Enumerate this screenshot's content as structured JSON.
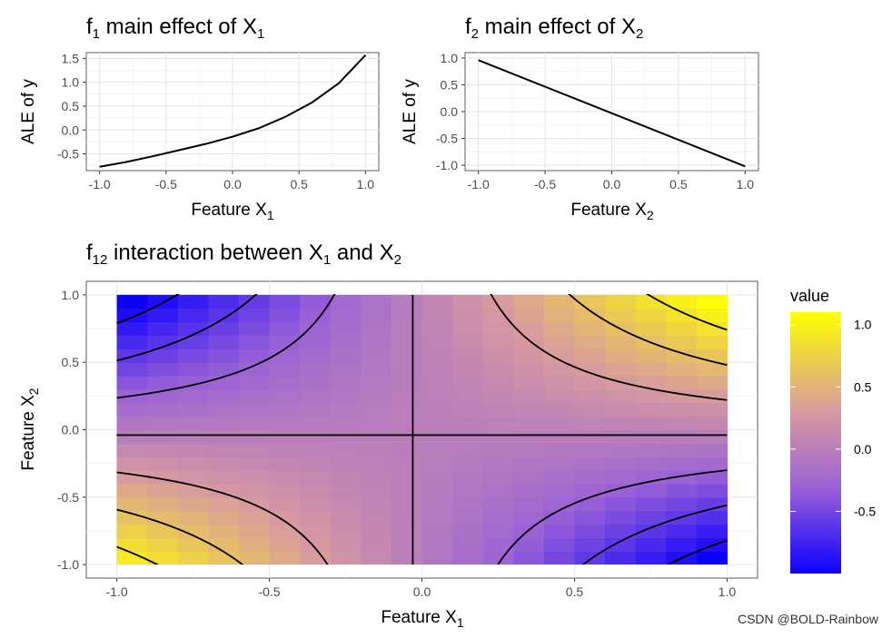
{
  "watermark": "CSDN @BOLD-Rainbow",
  "chart_data": [
    {
      "id": "f1",
      "type": "line",
      "title": {
        "main": "f",
        "sub": "1",
        "rest": " main effect of X",
        "sub2": "1"
      },
      "xlabel": {
        "main": "Feature X",
        "sub": "1"
      },
      "ylabel": "ALE of y",
      "xlim": [
        -1.1,
        1.1
      ],
      "ylim": [
        -0.85,
        1.62
      ],
      "xticks": [
        -1.0,
        -0.5,
        0.0,
        0.5,
        1.0
      ],
      "xtick_labels": [
        "-1.0",
        "-0.5",
        "0.0",
        "0.5",
        "1.0"
      ],
      "yticks": [
        -0.5,
        0.0,
        0.5,
        1.0,
        1.5
      ],
      "ytick_labels": [
        "-0.5",
        "0.0",
        "0.5",
        "1.0",
        "1.5"
      ],
      "grid": true,
      "x": [
        -1.0,
        -0.8,
        -0.6,
        -0.4,
        -0.2,
        0.0,
        0.2,
        0.4,
        0.6,
        0.8,
        1.0
      ],
      "y": [
        -0.77,
        -0.67,
        -0.55,
        -0.42,
        -0.29,
        -0.14,
        0.04,
        0.28,
        0.58,
        0.98,
        1.57
      ]
    },
    {
      "id": "f2",
      "type": "line",
      "title": {
        "main": "f",
        "sub": "2",
        "rest": " main effect of X",
        "sub2": "2"
      },
      "xlabel": {
        "main": "Feature X",
        "sub": "2"
      },
      "ylabel": "ALE of y",
      "xlim": [
        -1.1,
        1.1
      ],
      "ylim": [
        -1.1,
        1.1
      ],
      "xticks": [
        -1.0,
        -0.5,
        0.0,
        0.5,
        1.0
      ],
      "xtick_labels": [
        "-1.0",
        "-0.5",
        "0.0",
        "0.5",
        "1.0"
      ],
      "yticks": [
        -1.0,
        -0.5,
        0.0,
        0.5,
        1.0
      ],
      "ytick_labels": [
        "-1.0",
        "-0.5",
        "0.0",
        "0.5",
        "1.0"
      ],
      "grid": true,
      "x": [
        -1.0,
        1.0
      ],
      "y": [
        0.96,
        -1.02
      ]
    },
    {
      "id": "f12",
      "type": "heatmap",
      "title": {
        "main": "f",
        "sub": "12",
        "rest": " interaction between X",
        "sub2": "1",
        "rest2": " and X",
        "sub3": "2"
      },
      "xlabel": {
        "main": "Feature X",
        "sub": "1"
      },
      "ylabel": {
        "main": "Feature X",
        "sub": "2"
      },
      "xlim": [
        -1.1,
        1.1
      ],
      "ylim": [
        -1.1,
        1.1
      ],
      "xticks": [
        -1.0,
        -0.5,
        0.0,
        0.5,
        1.0
      ],
      "xtick_labels": [
        "-1.0",
        "-0.5",
        "0.0",
        "0.5",
        "1.0"
      ],
      "yticks": [
        -1.0,
        -0.5,
        0.0,
        0.5,
        1.0
      ],
      "ytick_labels": [
        "-1.0",
        "-0.5",
        "0.0",
        "0.5",
        "1.0"
      ],
      "grid": true,
      "surface": {
        "formula": "value = k * (X1 - c1) * (X2 - c2)",
        "k": 1.12,
        "c1": -0.03,
        "c2": -0.04
      },
      "grid_points": 20,
      "contour_levels": [
        -0.9,
        -0.6,
        -0.3,
        0.0,
        0.3,
        0.6,
        0.9
      ],
      "legend": {
        "title": "value",
        "ticks": [
          1.0,
          0.5,
          0.0,
          -0.5
        ],
        "tick_labels": [
          "1.0",
          "0.5",
          "0.0",
          "-0.5"
        ],
        "range": [
          -1.0,
          1.1
        ],
        "colors": [
          "#0d00ff",
          "#9b62d6",
          "#d79aa0",
          "#ffff00"
        ],
        "position": "right"
      }
    }
  ]
}
